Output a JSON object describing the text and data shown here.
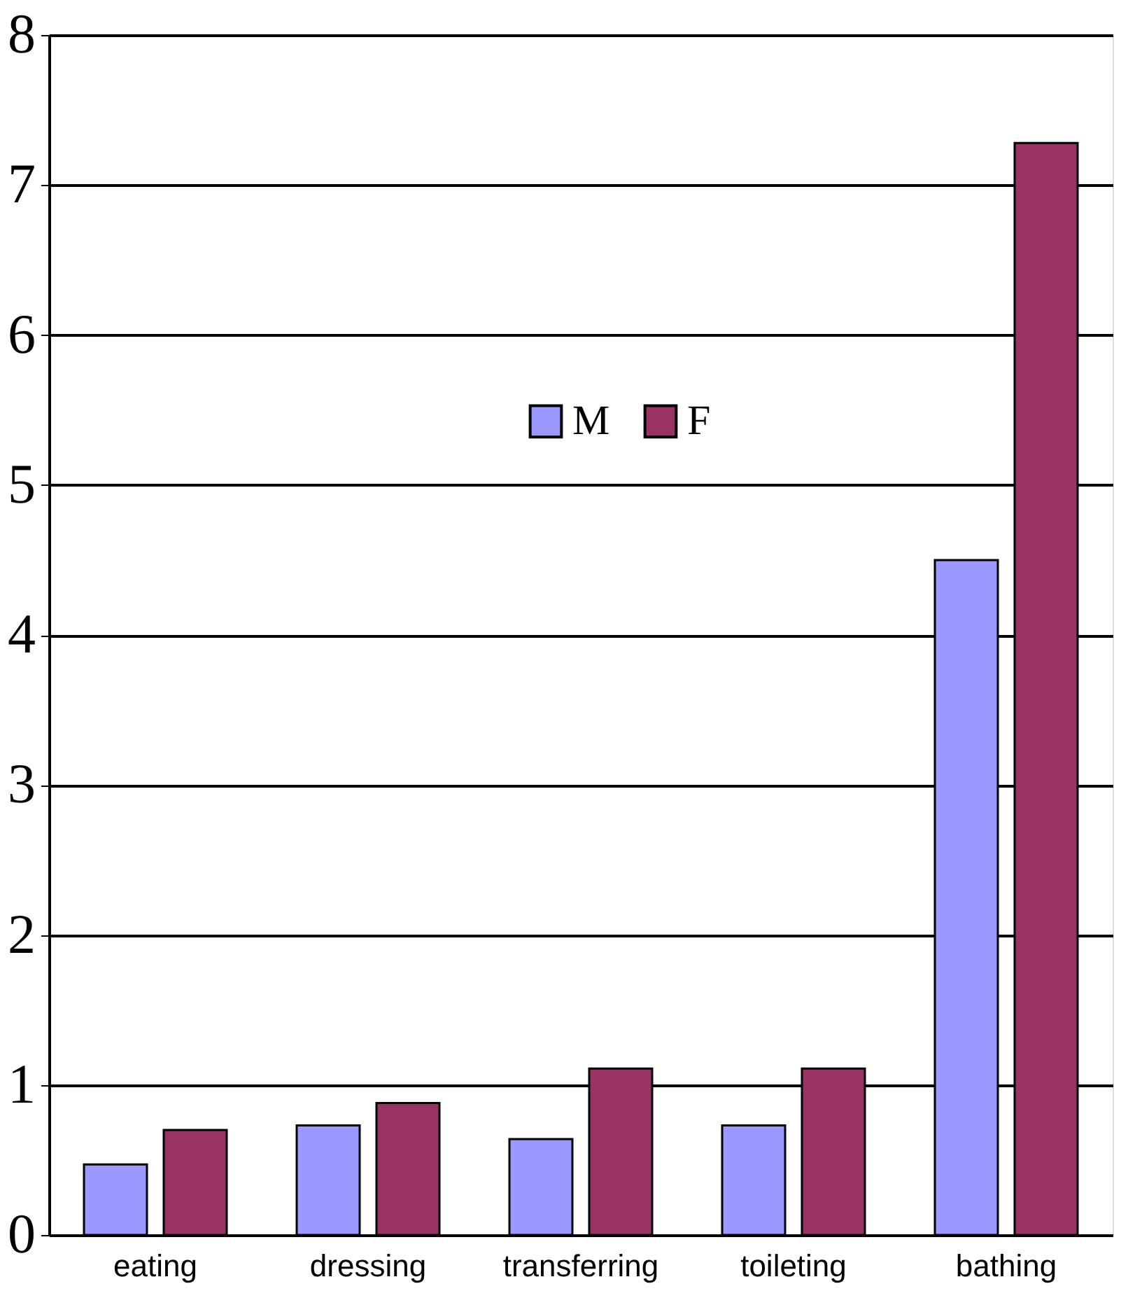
{
  "chart_data": {
    "type": "bar",
    "categories": [
      "eating",
      "dressing",
      "transferring",
      "toileting",
      "bathing"
    ],
    "series": [
      {
        "name": "M",
        "color": "#9999ff",
        "values": [
          0.47,
          0.73,
          0.64,
          0.73,
          4.5
        ]
      },
      {
        "name": "F",
        "color": "#993366",
        "values": [
          0.7,
          0.88,
          1.11,
          1.11,
          7.28
        ]
      }
    ],
    "ylim": [
      0,
      8
    ],
    "yticks": [
      0,
      1,
      2,
      3,
      4,
      5,
      6,
      7,
      8
    ],
    "grid": "y",
    "legend": "top"
  }
}
